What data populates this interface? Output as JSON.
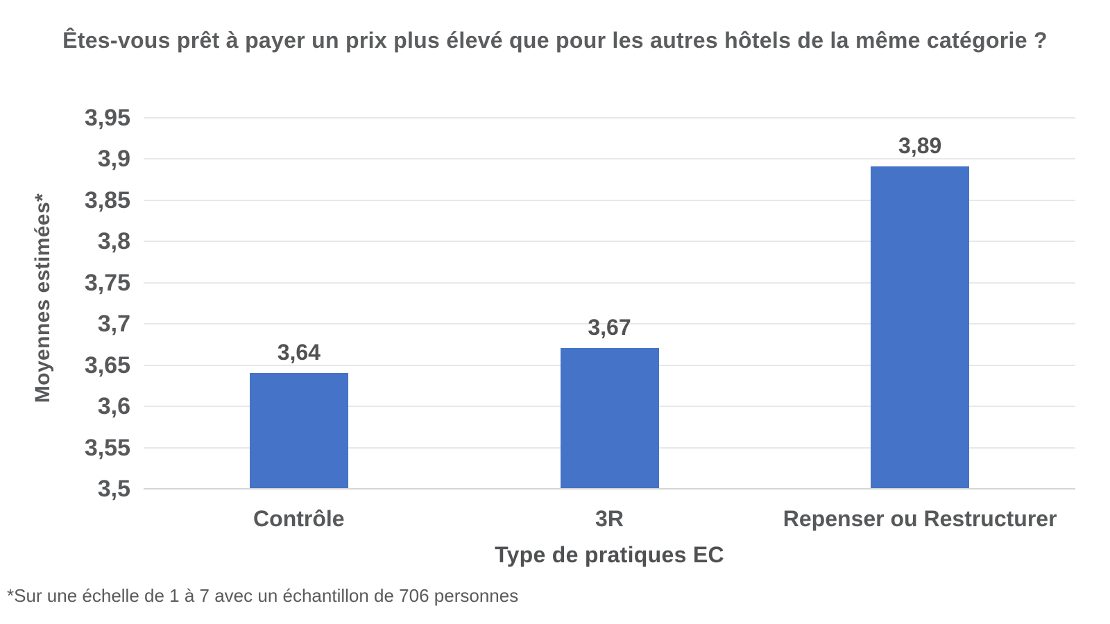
{
  "chart_data": {
    "type": "bar",
    "title": "Êtes-vous prêt à payer un prix plus élevé que pour les autres hôtels de la même catégorie ?",
    "xlabel": "Type de pratiques EC",
    "ylabel": "Moyennes estimées*",
    "categories": [
      "Contrôle",
      "3R",
      "Repenser ou Restructurer"
    ],
    "values": [
      3.64,
      3.67,
      3.89
    ],
    "value_labels": [
      "3,64",
      "3,67",
      "3,89"
    ],
    "ylim": [
      3.5,
      3.95
    ],
    "ytick_step": 0.05,
    "ytick_labels": [
      "3,5",
      "3,55",
      "3,6",
      "3,65",
      "3,7",
      "3,75",
      "3,8",
      "3,85",
      "3,9",
      "3,95"
    ],
    "grid": true,
    "legend": false,
    "footnote": "*Sur une échelle de 1 à 7 avec un échantillon de 706 personnes",
    "bar_color": "#4573c7"
  },
  "colors": {
    "bar": "#4573c7",
    "gridline": "#e8e8e8",
    "baseline": "#d5d5d5",
    "title_text": "#5b5c5e",
    "axis_text": "#57585a",
    "value_label_text": "#525252",
    "footnote_text": "#5a5a5a",
    "background": "#ffffff"
  }
}
